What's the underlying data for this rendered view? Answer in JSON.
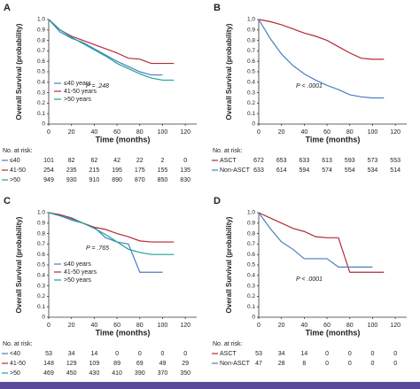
{
  "chart_data": [
    {
      "type": "line",
      "panel": "A",
      "ylabel": "Overall Survival (probability)",
      "xlabel": "Time (months)",
      "annotation": "P = .248",
      "x": [
        0,
        10,
        20,
        30,
        40,
        50,
        60,
        70,
        80,
        90,
        100,
        110,
        120
      ],
      "xlim": [
        0,
        130
      ],
      "xticks": [
        0,
        20,
        40,
        60,
        80,
        100,
        120
      ],
      "ylim": [
        0,
        1
      ],
      "yticks": [
        0,
        0.1,
        0.2,
        0.3,
        0.4,
        0.5,
        0.6,
        0.7,
        0.8,
        0.9,
        {
          "value": 1,
          "label": "1.0"
        }
      ],
      "legend": "lower left",
      "series": [
        {
          "name": "≤40 years",
          "color": "#4a7fc1",
          "values": [
            1,
            0.88,
            0.82,
            0.78,
            0.72,
            0.66,
            0.6,
            0.55,
            0.5,
            0.47,
            0.47,
            null,
            null
          ]
        },
        {
          "name": "41-50 years",
          "color": "#b5283a",
          "values": [
            1,
            0.9,
            0.84,
            0.8,
            0.76,
            0.72,
            0.68,
            0.63,
            0.62,
            0.58,
            0.58,
            0.58,
            null
          ]
        },
        {
          "name": ">50 years",
          "color": "#1aa39a",
          "values": [
            1,
            0.9,
            0.83,
            0.77,
            0.71,
            0.65,
            0.58,
            0.53,
            0.48,
            0.44,
            0.42,
            0.42,
            null
          ]
        }
      ],
      "risk_table": {
        "title": "No. at risk:",
        "rows": [
          {
            "name": "≤40",
            "values": [
              101,
              82,
              62,
              42,
              22,
              2,
              0
            ]
          },
          {
            "name": "41-50",
            "values": [
              254,
              235,
              215,
              195,
              175,
              155,
              135
            ]
          },
          {
            "name": ">50",
            "values": [
              949,
              930,
              910,
              890,
              870,
              850,
              830
            ]
          }
        ]
      }
    },
    {
      "type": "line",
      "panel": "B",
      "ylabel": "Overall Survival (probability)",
      "xlabel": "Time (months)",
      "annotation": "P < .0001",
      "x": [
        0,
        10,
        20,
        30,
        40,
        50,
        60,
        70,
        80,
        90,
        100,
        110,
        120
      ],
      "xlim": [
        0,
        130
      ],
      "xticks": [
        0,
        20,
        40,
        60,
        80,
        100,
        120
      ],
      "ylim": [
        0,
        1
      ],
      "yticks": [
        0,
        0.1,
        0.2,
        0.3,
        0.4,
        0.5,
        0.6,
        0.7,
        0.8,
        0.9,
        {
          "value": 1,
          "label": "1.0"
        }
      ],
      "series": [
        {
          "name": "ASCT",
          "color": "#b5283a",
          "values": [
            1,
            0.98,
            0.95,
            0.91,
            0.87,
            0.84,
            0.8,
            0.74,
            0.68,
            0.63,
            0.62,
            0.62,
            null
          ]
        },
        {
          "name": "Non-ASCT",
          "color": "#4a7fc1",
          "values": [
            1,
            0.82,
            0.67,
            0.56,
            0.48,
            0.42,
            0.37,
            0.33,
            0.28,
            0.26,
            0.25,
            0.25,
            null
          ]
        }
      ],
      "risk_table": {
        "title": "No. at risk:",
        "rows": [
          {
            "values": [
              672,
              653,
              633,
              613,
              593,
              573,
              553
            ]
          },
          {
            "values": [
              633,
              614,
              594,
              574,
              554,
              534,
              514
            ]
          }
        ]
      }
    },
    {
      "type": "line",
      "panel": "C",
      "ylabel": "Overall Survival (probability)",
      "xlabel": "Time (months)",
      "annotation": "P = .765",
      "x": [
        0,
        10,
        20,
        30,
        40,
        50,
        60,
        70,
        80,
        90,
        100,
        110,
        120
      ],
      "xlim": [
        0,
        130
      ],
      "xticks": [
        0,
        20,
        40,
        60,
        80,
        100,
        120
      ],
      "ylim": [
        0,
        1
      ],
      "yticks": [
        0,
        0.1,
        0.2,
        0.3,
        0.4,
        0.5,
        0.6,
        0.7,
        0.8,
        0.9,
        {
          "value": 1,
          "label": "1.0"
        }
      ],
      "legend": "center left",
      "series": [
        {
          "name": "≤40 years",
          "color": "#4a7fc1",
          "values": [
            1,
            0.97,
            0.93,
            0.9,
            0.86,
            0.76,
            0.72,
            0.7,
            0.43,
            0.43,
            0.43,
            null,
            null
          ]
        },
        {
          "name": "41-50 years",
          "color": "#b5283a",
          "values": [
            1,
            0.98,
            0.95,
            0.9,
            0.86,
            0.84,
            0.8,
            0.77,
            0.73,
            0.72,
            0.72,
            0.72,
            null
          ]
        },
        {
          "name": ">50 years",
          "color": "#1aa39a",
          "values": [
            1,
            0.97,
            0.94,
            0.9,
            0.85,
            0.79,
            0.72,
            0.65,
            0.62,
            0.6,
            0.6,
            0.6,
            null
          ]
        }
      ],
      "risk_table": {
        "title": "No. at risk:",
        "rows": [
          {
            "name": "<40",
            "values": [
              53,
              34,
              14,
              0,
              0,
              0,
              0
            ]
          },
          {
            "name": "41-50",
            "values": [
              148,
              129,
              109,
              89,
              69,
              49,
              29
            ]
          },
          {
            "name": ">50",
            "values": [
              469,
              450,
              430,
              410,
              390,
              370,
              350
            ]
          }
        ]
      }
    },
    {
      "type": "line",
      "panel": "D",
      "ylabel": "Overall Survival (probability)",
      "xlabel": "Time (months)",
      "annotation": "P < .0001",
      "x": [
        0,
        10,
        20,
        30,
        40,
        50,
        60,
        70,
        80,
        90,
        100,
        110,
        120
      ],
      "xlim": [
        0,
        130
      ],
      "xticks": [
        0,
        20,
        40,
        60,
        80,
        100,
        120
      ],
      "ylim": [
        0,
        1
      ],
      "yticks": [
        0,
        0.1,
        0.2,
        0.3,
        0.4,
        0.5,
        0.6,
        0.7,
        0.8,
        0.9,
        {
          "value": 1,
          "label": "1.0"
        }
      ],
      "series": [
        {
          "name": "ASCT",
          "color": "#b5283a",
          "values": [
            1,
            0.95,
            0.9,
            0.85,
            0.82,
            0.77,
            0.76,
            0.76,
            0.43,
            0.43,
            0.43,
            0.43,
            null
          ]
        },
        {
          "name": "Non-ASCT",
          "color": "#4a7fc1",
          "values": [
            1,
            0.85,
            0.72,
            0.65,
            0.56,
            0.56,
            0.56,
            0.48,
            0.48,
            0.48,
            0.48,
            null,
            null
          ]
        }
      ],
      "risk_table": {
        "title": "No. at risk:",
        "rows": [
          {
            "values": [
              53,
              34,
              14,
              0,
              0,
              0,
              0
            ]
          },
          {
            "values": [
              47,
              28,
              8,
              0,
              0,
              0,
              0
            ]
          }
        ]
      }
    }
  ]
}
